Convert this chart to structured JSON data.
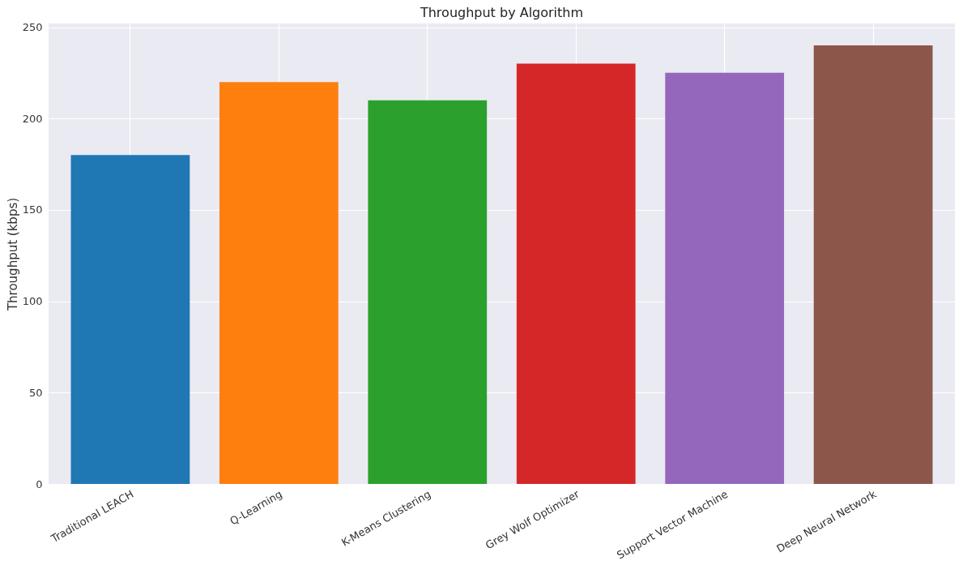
{
  "chart_data": {
    "type": "bar",
    "title": "Throughput by Algorithm",
    "ylabel": "Throughput (kbps)",
    "categories": [
      "Traditional LEACH",
      "Q-Learning",
      "K-Means Clustering",
      "Grey Wolf Optimizer",
      "Support Vector Machine",
      "Deep Neural Network"
    ],
    "values": [
      180,
      220,
      210,
      230,
      225,
      240
    ],
    "colors": [
      "#1f77b4",
      "#ff7f0e",
      "#2ca02c",
      "#d62728",
      "#9467bd",
      "#8c564b"
    ],
    "ylim": [
      0,
      252
    ],
    "yticks": [
      0,
      50,
      100,
      150,
      200,
      250
    ],
    "grid": true
  }
}
